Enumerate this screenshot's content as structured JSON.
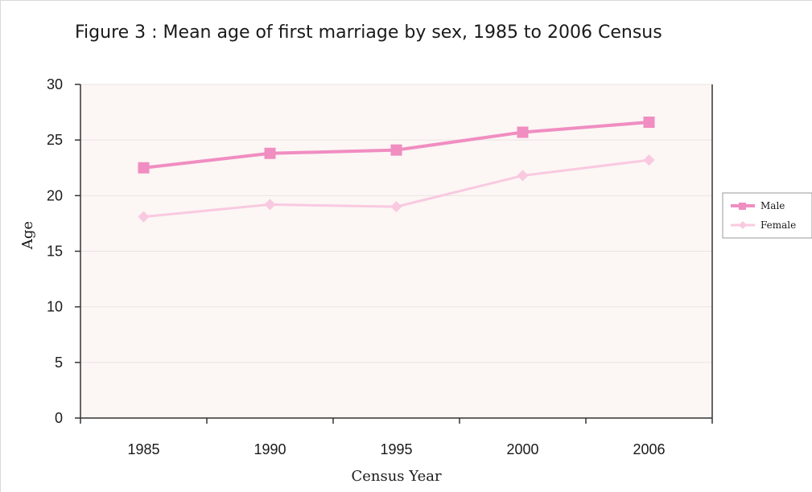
{
  "figure": {
    "title": "Figure 3 : Mean age of first marriage by sex, 1985 to 2006 Census"
  },
  "colors": {
    "plot_background": "#fcf6f4",
    "male": "#f08dc1",
    "female": "#f9c9e0",
    "axis": "#333333",
    "gridline": "#ece3e3"
  },
  "chart_data": {
    "type": "line",
    "categories": [
      "1985",
      "1990",
      "1995",
      "2000",
      "2006"
    ],
    "series": [
      {
        "name": "Male",
        "marker": "square",
        "values": [
          22.5,
          23.8,
          24.1,
          25.7,
          26.6
        ]
      },
      {
        "name": "Female",
        "marker": "diamond",
        "values": [
          18.1,
          19.2,
          19.0,
          21.8,
          23.2
        ]
      }
    ],
    "xlabel": "Census Year",
    "ylabel": "Age",
    "ylim": [
      0,
      30
    ],
    "yticks": [
      0,
      5,
      10,
      15,
      20,
      25,
      30
    ],
    "grid": true,
    "legend_position": "right"
  }
}
